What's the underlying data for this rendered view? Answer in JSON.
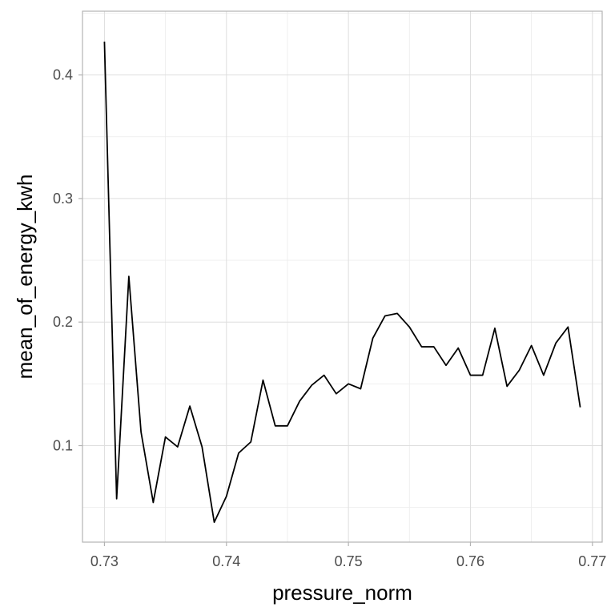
{
  "chart_data": {
    "type": "line",
    "xlabel": "pressure_norm",
    "ylabel": "mean_of_energy_kwh",
    "xlim": [
      0.7282,
      0.7708
    ],
    "ylim": [
      0.0219,
      0.4516
    ],
    "x_ticks": [
      0.73,
      0.74,
      0.75,
      0.76,
      0.77
    ],
    "x_tick_labels": [
      "0.73",
      "0.74",
      "0.75",
      "0.76",
      "0.77"
    ],
    "y_ticks": [
      0.1,
      0.2,
      0.3,
      0.4
    ],
    "y_tick_labels": [
      "0.1",
      "0.2",
      "0.3",
      "0.4"
    ],
    "grid": true,
    "series": [
      {
        "color": "#000000",
        "x": [
          0.73,
          0.731,
          0.732,
          0.733,
          0.734,
          0.735,
          0.736,
          0.737,
          0.738,
          0.739,
          0.74,
          0.741,
          0.742,
          0.743,
          0.744,
          0.745,
          0.746,
          0.747,
          0.748,
          0.749,
          0.75,
          0.751,
          0.752,
          0.753,
          0.754,
          0.755,
          0.756,
          0.757,
          0.758,
          0.759,
          0.76,
          0.761,
          0.762,
          0.763,
          0.764,
          0.765,
          0.766,
          0.767,
          0.768,
          0.769
        ],
        "y": [
          0.427,
          0.057,
          0.237,
          0.111,
          0.054,
          0.107,
          0.099,
          0.132,
          0.099,
          0.038,
          0.059,
          0.094,
          0.103,
          0.153,
          0.116,
          0.116,
          0.136,
          0.149,
          0.157,
          0.142,
          0.15,
          0.146,
          0.187,
          0.205,
          0.207,
          0.196,
          0.18,
          0.18,
          0.165,
          0.179,
          0.157,
          0.157,
          0.195,
          0.148,
          0.161,
          0.181,
          0.157,
          0.183,
          0.196,
          0.131
        ]
      }
    ]
  }
}
